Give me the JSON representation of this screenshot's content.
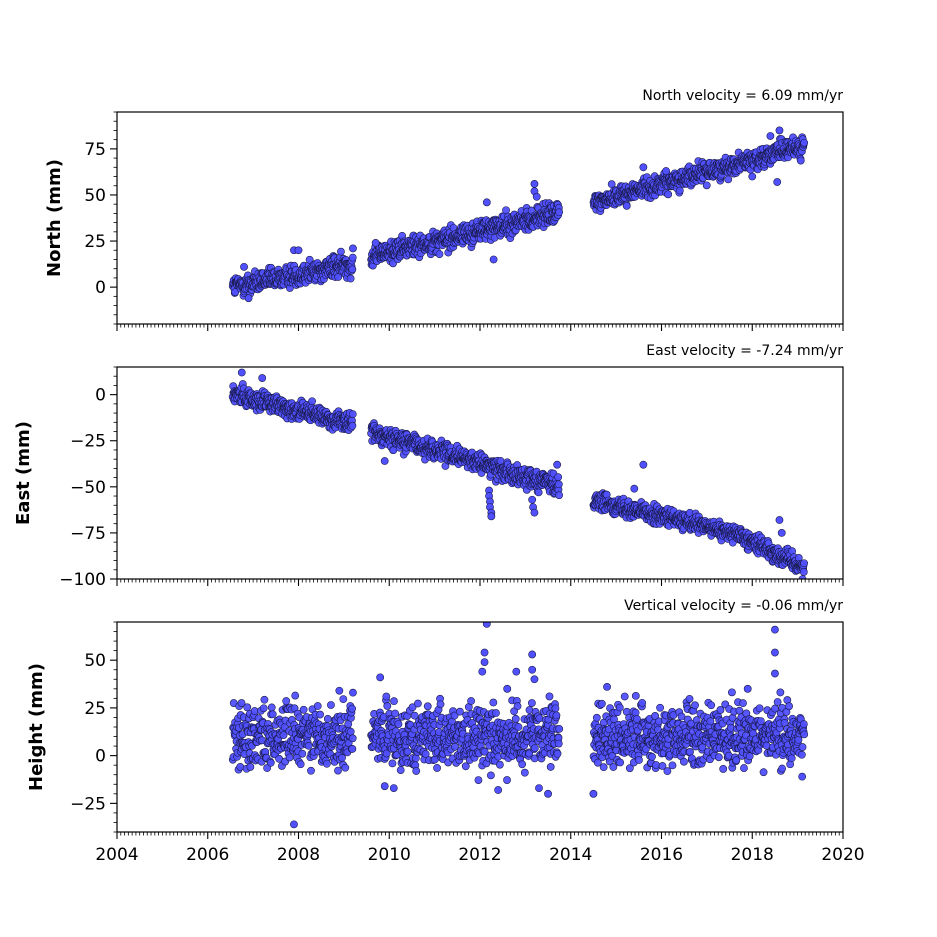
{
  "chart_data": [
    {
      "type": "scatter",
      "title": "North velocity = 6.09 mm/yr",
      "ylabel": "North (mm)",
      "xlabel": "",
      "xlim": [
        2004,
        2020
      ],
      "ylim": [
        -20,
        95
      ],
      "yticks": [
        0,
        25,
        50,
        75
      ],
      "ytick_labels": [
        "0",
        "25",
        "50",
        "75"
      ],
      "grid": false,
      "marker_color": "#5050ff",
      "marker_edge": "#1a1a4a",
      "segments": [
        {
          "start": 2006.55,
          "end": 2009.2,
          "y_start": 0,
          "slope": 4.8,
          "noise": 3
        },
        {
          "start": 2009.6,
          "end": 2013.75,
          "y_start": 17,
          "slope": 5.6,
          "noise": 3
        },
        {
          "start": 2014.5,
          "end": 2019.15,
          "y_start": 46,
          "slope": 6.6,
          "noise": 2.6
        }
      ],
      "outliers": [
        {
          "x": 2006.8,
          "y": 11
        },
        {
          "x": 2006.9,
          "y": -6
        },
        {
          "x": 2007.9,
          "y": 20
        },
        {
          "x": 2008.0,
          "y": 20
        },
        {
          "x": 2009.2,
          "y": 21
        },
        {
          "x": 2009.7,
          "y": 24
        },
        {
          "x": 2012.15,
          "y": 46
        },
        {
          "x": 2012.3,
          "y": 15
        },
        {
          "x": 2013.2,
          "y": 56
        },
        {
          "x": 2013.2,
          "y": 52
        },
        {
          "x": 2013.25,
          "y": 49
        },
        {
          "x": 2015.6,
          "y": 65
        },
        {
          "x": 2016.1,
          "y": 63
        },
        {
          "x": 2018.4,
          "y": 82
        },
        {
          "x": 2018.6,
          "y": 85
        },
        {
          "x": 2018.55,
          "y": 57
        },
        {
          "x": 2018.0,
          "y": 60
        }
      ]
    },
    {
      "type": "scatter",
      "title": "East velocity = -7.24 mm/yr",
      "ylabel": "East (mm)",
      "xlabel": "",
      "xlim": [
        2004,
        2020
      ],
      "ylim": [
        -100,
        15
      ],
      "yticks": [
        -100,
        -75,
        -50,
        -25,
        0
      ],
      "ytick_labels": [
        "−100",
        "−75",
        "−50",
        "−25",
        "0"
      ],
      "grid": false,
      "marker_color": "#5050ff",
      "marker_edge": "#1a1a4a",
      "segments": [
        {
          "start": 2006.55,
          "end": 2009.2,
          "y_start": 0,
          "slope": -6.0,
          "noise": 2.6
        },
        {
          "start": 2009.6,
          "end": 2013.75,
          "y_start": -20,
          "slope": -7.2,
          "noise": 2.6
        },
        {
          "start": 2014.5,
          "end": 2017.8,
          "y_start": -57,
          "slope": -6.0,
          "noise": 2.3
        },
        {
          "start": 2017.8,
          "end": 2019.15,
          "y_start": -77,
          "slope": -12.5,
          "noise": 2.6
        }
      ],
      "outliers": [
        {
          "x": 2006.75,
          "y": 12
        },
        {
          "x": 2007.2,
          "y": 9
        },
        {
          "x": 2009.9,
          "y": -36
        },
        {
          "x": 2012.2,
          "y": -52
        },
        {
          "x": 2012.2,
          "y": -55
        },
        {
          "x": 2012.22,
          "y": -58
        },
        {
          "x": 2012.22,
          "y": -61
        },
        {
          "x": 2012.25,
          "y": -64
        },
        {
          "x": 2012.25,
          "y": -66
        },
        {
          "x": 2013.15,
          "y": -57
        },
        {
          "x": 2013.17,
          "y": -61
        },
        {
          "x": 2013.2,
          "y": -64
        },
        {
          "x": 2013.7,
          "y": -38
        },
        {
          "x": 2015.6,
          "y": -38
        },
        {
          "x": 2015.4,
          "y": -51
        },
        {
          "x": 2018.6,
          "y": -68
        },
        {
          "x": 2018.65,
          "y": -75
        }
      ]
    },
    {
      "type": "scatter",
      "title": "Vertical velocity = -0.06 mm/yr",
      "ylabel": "Height (mm)",
      "xlabel": "",
      "xlim": [
        2004,
        2020
      ],
      "ylim": [
        -40,
        70
      ],
      "yticks": [
        -25,
        0,
        25,
        50
      ],
      "ytick_labels": [
        "−25",
        "0",
        "25",
        "50"
      ],
      "xticks": [
        2004,
        2006,
        2008,
        2010,
        2012,
        2014,
        2016,
        2018,
        2020
      ],
      "xtick_labels": [
        "2004",
        "2006",
        "2008",
        "2010",
        "2012",
        "2014",
        "2016",
        "2018",
        "2020"
      ],
      "grid": false,
      "marker_color": "#5050ff",
      "marker_edge": "#1a1a4a",
      "segments": [
        {
          "start": 2006.55,
          "end": 2009.2,
          "y_start": 10,
          "slope": 0,
          "noise": 8
        },
        {
          "start": 2009.6,
          "end": 2013.75,
          "y_start": 10,
          "slope": 0,
          "noise": 8
        },
        {
          "start": 2014.5,
          "end": 2019.15,
          "y_start": 10,
          "slope": 0,
          "noise": 8
        }
      ],
      "outliers": [
        {
          "x": 2007.9,
          "y": -36
        },
        {
          "x": 2012.15,
          "y": 69
        },
        {
          "x": 2012.1,
          "y": 54
        },
        {
          "x": 2012.1,
          "y": 49
        },
        {
          "x": 2012.05,
          "y": 44
        },
        {
          "x": 2012.4,
          "y": -18
        },
        {
          "x": 2012.6,
          "y": 35
        },
        {
          "x": 2012.8,
          "y": 44
        },
        {
          "x": 2013.15,
          "y": 53
        },
        {
          "x": 2013.15,
          "y": 45
        },
        {
          "x": 2013.2,
          "y": 40
        },
        {
          "x": 2013.3,
          "y": -17
        },
        {
          "x": 2013.5,
          "y": -20
        },
        {
          "x": 2009.8,
          "y": 41
        },
        {
          "x": 2009.9,
          "y": -16
        },
        {
          "x": 2010.1,
          "y": -17
        },
        {
          "x": 2014.5,
          "y": -20
        },
        {
          "x": 2014.8,
          "y": 36
        },
        {
          "x": 2018.5,
          "y": 66
        },
        {
          "x": 2018.5,
          "y": 54
        },
        {
          "x": 2018.5,
          "y": 43
        },
        {
          "x": 2019.1,
          "y": -11
        },
        {
          "x": 2017.9,
          "y": 35
        },
        {
          "x": 2008.9,
          "y": 34
        },
        {
          "x": 2009.2,
          "y": 33
        }
      ]
    }
  ]
}
